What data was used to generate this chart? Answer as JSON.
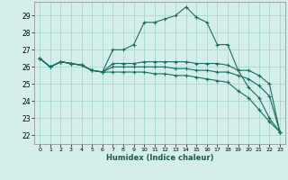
{
  "xlabel": "Humidex (Indice chaleur)",
  "xlim": [
    -0.5,
    23.5
  ],
  "ylim": [
    21.5,
    29.8
  ],
  "yticks": [
    22,
    23,
    24,
    25,
    26,
    27,
    28,
    29
  ],
  "xticks": [
    0,
    1,
    2,
    3,
    4,
    5,
    6,
    7,
    8,
    9,
    10,
    11,
    12,
    13,
    14,
    15,
    16,
    17,
    18,
    19,
    20,
    21,
    22,
    23
  ],
  "bg_color": "#d4eeea",
  "line_color": "#1a6e62",
  "grid_color": "#aad8d2",
  "lines": [
    [
      26.5,
      26.0,
      26.3,
      26.2,
      26.1,
      25.8,
      25.7,
      27.0,
      27.0,
      27.3,
      28.6,
      28.6,
      28.8,
      29.0,
      29.5,
      28.9,
      28.6,
      27.3,
      27.3,
      25.8,
      24.8,
      24.2,
      23.0,
      22.2
    ],
    [
      26.5,
      26.0,
      26.3,
      26.2,
      26.1,
      25.8,
      25.7,
      26.2,
      26.2,
      26.2,
      26.3,
      26.3,
      26.3,
      26.3,
      26.3,
      26.2,
      26.2,
      26.2,
      26.1,
      25.8,
      25.8,
      25.5,
      25.0,
      22.2
    ],
    [
      26.5,
      26.0,
      26.3,
      26.2,
      26.1,
      25.8,
      25.7,
      26.0,
      26.0,
      26.0,
      26.0,
      26.0,
      26.0,
      25.9,
      25.9,
      25.8,
      25.8,
      25.7,
      25.7,
      25.5,
      25.3,
      24.9,
      24.3,
      22.2
    ],
    [
      26.5,
      26.0,
      26.3,
      26.2,
      26.1,
      25.8,
      25.7,
      25.7,
      25.7,
      25.7,
      25.7,
      25.6,
      25.6,
      25.5,
      25.5,
      25.4,
      25.3,
      25.2,
      25.1,
      24.6,
      24.2,
      23.5,
      22.8,
      22.2
    ]
  ]
}
